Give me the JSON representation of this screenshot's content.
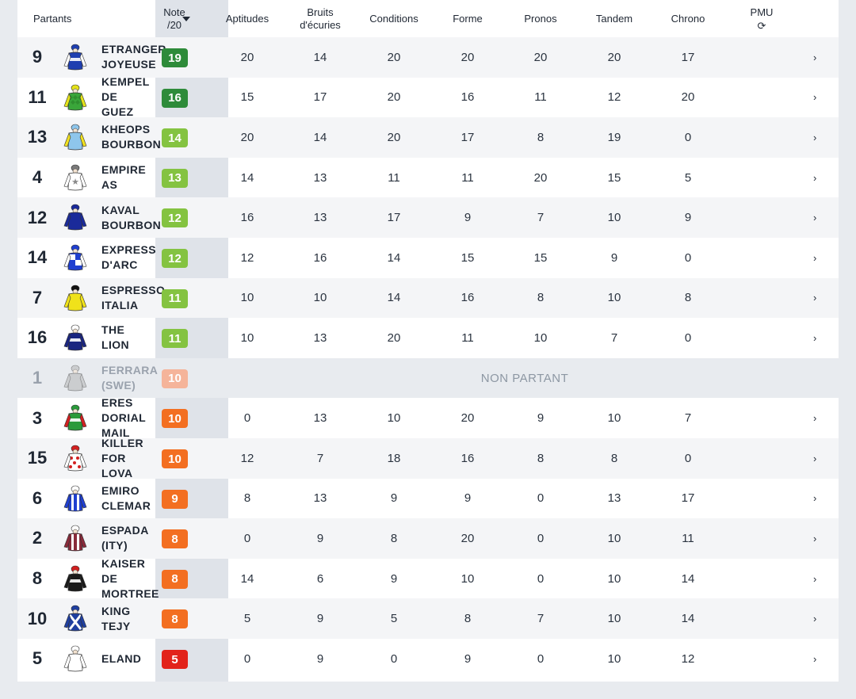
{
  "header": {
    "partants": "Partants",
    "note_line1": "Note",
    "note_line2": "/20",
    "aptitudes": "Aptitudes",
    "bruits_line1": "Bruits",
    "bruits_line2": "d'écuries",
    "conditions": "Conditions",
    "forme": "Forme",
    "pronos": "Pronos",
    "tandem": "Tandem",
    "chrono": "Chrono",
    "pmu": "PMU",
    "refresh_icon": "⟳"
  },
  "colors": {
    "dark_green": "#2e8b3a",
    "green": "#6cb33e",
    "light_green": "#84c341",
    "peach": "#f5b49a",
    "orange": "#f36f21",
    "red": "#e2231a"
  },
  "non_partant_label": "NON PARTANT",
  "chevron": "›",
  "rows": [
    {
      "num": "9",
      "name": [
        "ETRANGER",
        "JOYEUSE"
      ],
      "note": "19",
      "badge": "dark_green",
      "scores": [
        "20",
        "14",
        "20",
        "20",
        "20",
        "20",
        "17"
      ],
      "silk": {
        "body": "#1f3fb0",
        "sleeve": "#ffffff",
        "cap": "#1f3fb0",
        "pattern": "hoop"
      }
    },
    {
      "num": "11",
      "name": [
        "KEMPEL",
        "DE",
        "GUEZ"
      ],
      "note": "16",
      "badge": "dark_green",
      "scores": [
        "15",
        "17",
        "20",
        "16",
        "11",
        "12",
        "20"
      ],
      "silk": {
        "body": "#3aa63a",
        "sleeve": "#e4e21a",
        "cap": "#e4e21a",
        "pattern": "diamond"
      }
    },
    {
      "num": "13",
      "name": [
        "KHEOPS",
        "BOURBON"
      ],
      "note": "14",
      "badge": "light_green",
      "scores": [
        "20",
        "14",
        "20",
        "17",
        "8",
        "19",
        "0"
      ],
      "silk": {
        "body": "#8ec6ec",
        "sleeve": "#f0e020",
        "cap": "#8ec6ec",
        "pattern": "plain"
      }
    },
    {
      "num": "4",
      "name": [
        "EMPIRE",
        "AS"
      ],
      "note": "13",
      "badge": "light_green",
      "scores": [
        "14",
        "13",
        "11",
        "11",
        "20",
        "15",
        "5"
      ],
      "silk": {
        "body": "#ffffff",
        "sleeve": "#ffffff",
        "cap": "#7a7a7a",
        "pattern": "star"
      }
    },
    {
      "num": "12",
      "name": [
        "KAVAL",
        "BOURBON"
      ],
      "note": "12",
      "badge": "light_green",
      "scores": [
        "16",
        "13",
        "17",
        "9",
        "7",
        "10",
        "9"
      ],
      "silk": {
        "body": "#1a2a9a",
        "sleeve": "#1a2a9a",
        "cap": "#1a2a9a",
        "pattern": "plain"
      }
    },
    {
      "num": "14",
      "name": [
        "EXPRESS",
        "D'ARC"
      ],
      "note": "12",
      "badge": "light_green",
      "scores": [
        "12",
        "16",
        "14",
        "15",
        "15",
        "9",
        "0"
      ],
      "silk": {
        "body": "#1f3fd0",
        "sleeve": "#ffffff",
        "cap": "#1f3fd0",
        "pattern": "check"
      }
    },
    {
      "num": "7",
      "name": [
        "ESPRESSO",
        "ITALIA"
      ],
      "note": "11",
      "badge": "light_green",
      "scores": [
        "10",
        "10",
        "14",
        "16",
        "8",
        "10",
        "8"
      ],
      "silk": {
        "body": "#f0e21a",
        "sleeve": "#f0e21a",
        "cap": "#111111",
        "pattern": "plain"
      }
    },
    {
      "num": "16",
      "name": [
        "THE",
        "LION"
      ],
      "note": "11",
      "badge": "light_green",
      "scores": [
        "10",
        "13",
        "20",
        "11",
        "10",
        "7",
        "0"
      ],
      "silk": {
        "body": "#1a2580",
        "sleeve": "#1a2580",
        "cap": "#ffffff",
        "pattern": "hoop"
      }
    },
    {
      "num": "1",
      "name": [
        "FERRARA",
        "(SWE)"
      ],
      "note": "10",
      "badge": "peach",
      "non_partant": true,
      "silk": {
        "body": "#b5b5b5",
        "sleeve": "#b5b5b5",
        "cap": "#b5b5b5",
        "pattern": "plain"
      }
    },
    {
      "num": "3",
      "name": [
        "ERES",
        "DORIAL",
        "MAIL"
      ],
      "note": "10",
      "badge": "orange",
      "scores": [
        "0",
        "13",
        "10",
        "20",
        "9",
        "10",
        "7"
      ],
      "silk": {
        "body": "#2a9a3a",
        "sleeve": "#d22020",
        "cap": "#2a9a3a",
        "pattern": "hoop"
      }
    },
    {
      "num": "15",
      "name": [
        "KILLER",
        "FOR",
        "LOVA"
      ],
      "note": "10",
      "badge": "orange",
      "scores": [
        "12",
        "7",
        "18",
        "16",
        "8",
        "8",
        "0"
      ],
      "silk": {
        "body": "#ffffff",
        "sleeve": "#ffffff",
        "cap": "#d22020",
        "pattern": "dots"
      }
    },
    {
      "num": "6",
      "name": [
        "EMIRO",
        "CLEMAR"
      ],
      "note": "9",
      "badge": "orange",
      "scores": [
        "8",
        "13",
        "9",
        "9",
        "0",
        "13",
        "17"
      ],
      "silk": {
        "body": "#1f3fd0",
        "sleeve": "#1f3fd0",
        "cap": "#ffffff",
        "pattern": "stripe"
      }
    },
    {
      "num": "2",
      "name": [
        "ESPADA",
        "(ITY)"
      ],
      "note": "8",
      "badge": "orange",
      "scores": [
        "0",
        "9",
        "8",
        "20",
        "0",
        "10",
        "11"
      ],
      "silk": {
        "body": "#8a2a3a",
        "sleeve": "#8a2a3a",
        "cap": "#ffffff",
        "pattern": "stripe"
      }
    },
    {
      "num": "8",
      "name": [
        "KAISER",
        "DE",
        "MORTREE"
      ],
      "note": "8",
      "badge": "orange",
      "scores": [
        "14",
        "6",
        "9",
        "10",
        "0",
        "10",
        "14"
      ],
      "silk": {
        "body": "#1a1a1a",
        "sleeve": "#1a1a1a",
        "cap": "#d22020",
        "pattern": "hoop"
      }
    },
    {
      "num": "10",
      "name": [
        "KING",
        "TEJY"
      ],
      "note": "8",
      "badge": "orange",
      "scores": [
        "5",
        "9",
        "5",
        "8",
        "7",
        "10",
        "14"
      ],
      "silk": {
        "body": "#1f3fa0",
        "sleeve": "#1f3fa0",
        "cap": "#1f3fa0",
        "pattern": "cross"
      }
    },
    {
      "num": "5",
      "name": [
        "ELAND"
      ],
      "note": "5",
      "badge": "red",
      "scores": [
        "0",
        "9",
        "0",
        "9",
        "0",
        "10",
        "12"
      ],
      "silk": {
        "body": "#ffffff",
        "sleeve": "#ffffff",
        "cap": "#ffffff",
        "pattern": "plain"
      }
    }
  ]
}
